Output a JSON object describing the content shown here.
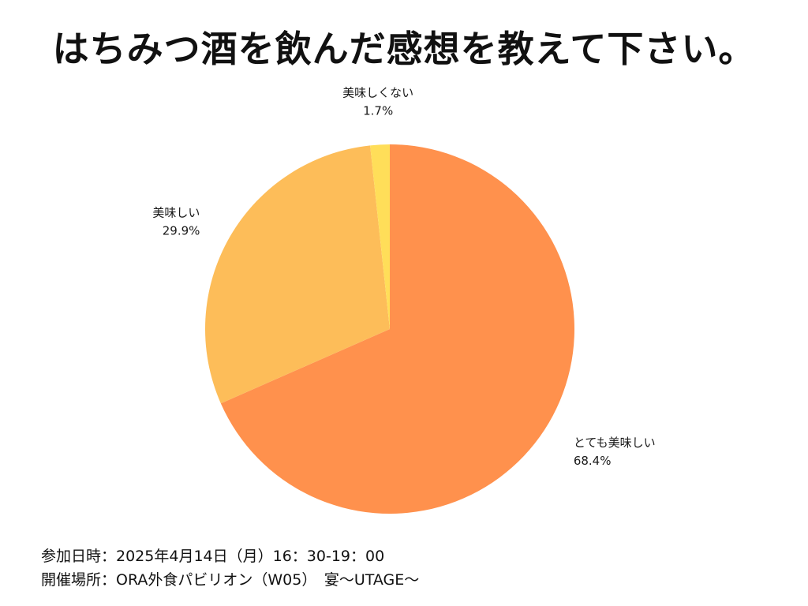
{
  "title": "はちみつ酒を飲んだ感想を教えて下さい。",
  "chart_data": {
    "type": "pie",
    "start": "top",
    "direction": "clockwise",
    "slices": [
      {
        "label": "とても美味しい",
        "value": 68.4,
        "value_label": "68.4%",
        "color": "#ff914d"
      },
      {
        "label": "美味しい",
        "value": 29.9,
        "value_label": "29.9%",
        "color": "#fdbd59"
      },
      {
        "label": "美味しくない",
        "value": 1.7,
        "value_label": "1.7%",
        "color": "#ffde59"
      }
    ]
  },
  "footer": {
    "date_line": "参加日時：2025年4月14日（月）16：30-19：00",
    "venue_line": "開催場所：ORA外食パビリオン（W05）　宴〜UTAGE〜"
  }
}
